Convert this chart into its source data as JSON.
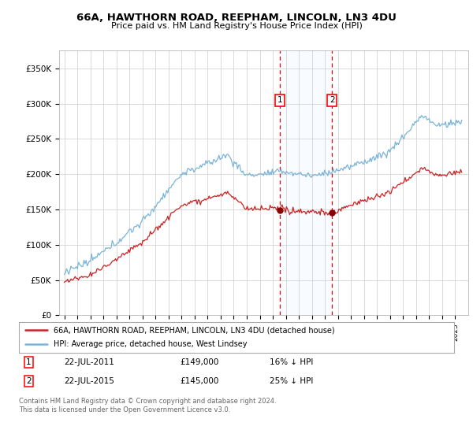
{
  "title": "66A, HAWTHORN ROAD, REEPHAM, LINCOLN, LN3 4DU",
  "subtitle": "Price paid vs. HM Land Registry's House Price Index (HPI)",
  "ylim": [
    0,
    375000
  ],
  "yticks": [
    0,
    50000,
    100000,
    150000,
    200000,
    250000,
    300000,
    350000
  ],
  "ytick_labels": [
    "£0",
    "£50K",
    "£100K",
    "£150K",
    "£200K",
    "£250K",
    "£300K",
    "£350K"
  ],
  "hpi_color": "#7ab4d8",
  "price_color": "#cc2222",
  "marker_color": "#880000",
  "sale1_date": 2011.55,
  "sale1_price": 149000,
  "sale2_date": 2015.55,
  "sale2_price": 145000,
  "legend_line1": "66A, HAWTHORN ROAD, REEPHAM, LINCOLN, LN3 4DU (detached house)",
  "legend_line2": "HPI: Average price, detached house, West Lindsey",
  "table_row1": [
    "1",
    "22-JUL-2011",
    "£149,000",
    "16% ↓ HPI"
  ],
  "table_row2": [
    "2",
    "22-JUL-2015",
    "£145,000",
    "25% ↓ HPI"
  ],
  "footnote": "Contains HM Land Registry data © Crown copyright and database right 2024.\nThis data is licensed under the Open Government Licence v3.0.",
  "bg_color": "#ffffff",
  "grid_color": "#cccccc",
  "shade_color": "#ddeeff"
}
